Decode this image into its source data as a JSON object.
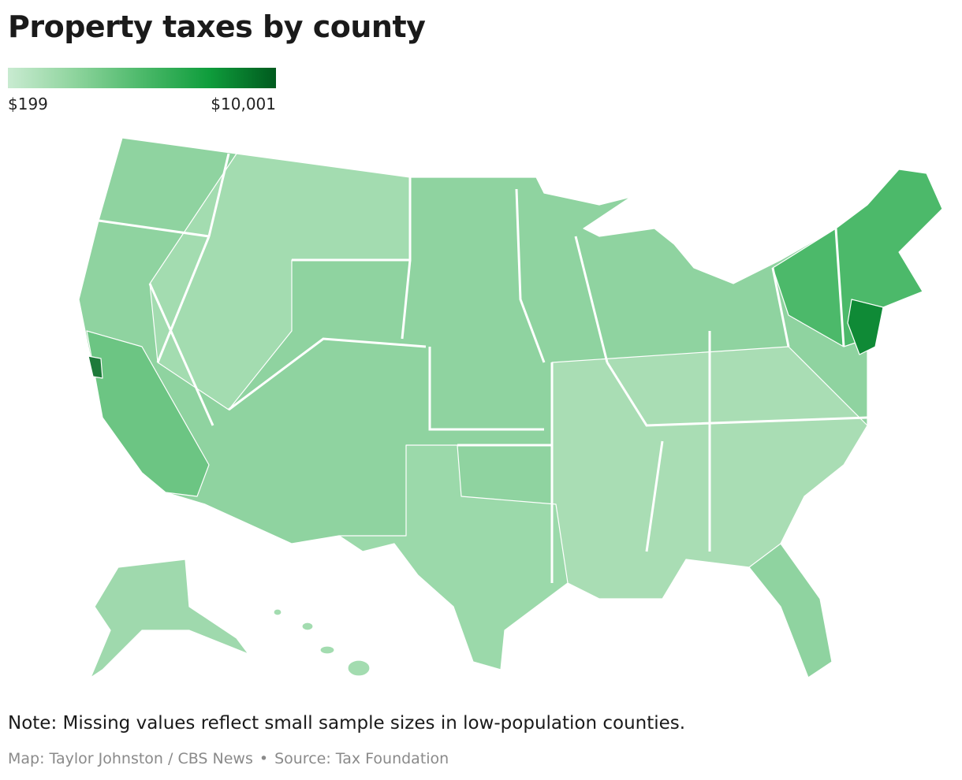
{
  "header": {
    "title": "Property taxes by county"
  },
  "legend": {
    "min_label": "$199",
    "max_label": "$10,001",
    "colors": [
      "#c9ebd1",
      "#8ed49d",
      "#4cb96a",
      "#0f9d3c",
      "#005a1e"
    ]
  },
  "footer": {
    "note": "Missing values reflect small sample sizes in low-population counties.",
    "note_prefix": "Note:",
    "credit": "Map: Taylor Johnston / CBS News",
    "source": "Source: Tax Foundation"
  }
}
